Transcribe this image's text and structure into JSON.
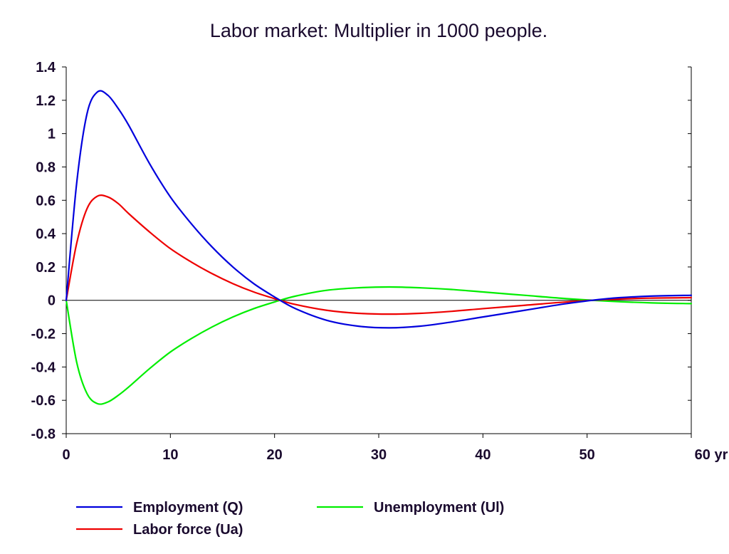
{
  "chart_data": {
    "type": "line",
    "title": "Labor market: Multiplier in 1000 people.",
    "xlabel": "",
    "ylabel": "",
    "x_unit": "yr",
    "xlim": [
      0,
      60
    ],
    "ylim": [
      -0.8,
      1.4
    ],
    "x_ticks": [
      0,
      10,
      20,
      30,
      40,
      50,
      60
    ],
    "x_tick_labels": [
      "0",
      "10",
      "20",
      "30",
      "40",
      "50",
      "60 yr"
    ],
    "y_ticks": [
      -0.8,
      -0.6,
      -0.4,
      -0.2,
      0,
      0.2,
      0.4,
      0.6,
      0.8,
      1,
      1.2,
      1.4
    ],
    "y_tick_labels": [
      "-0.8",
      "-0.6",
      "-0.4",
      "-0.2",
      "0",
      "0.2",
      "0.4",
      "0.6",
      "0.8",
      "1",
      "1.2",
      "1.4"
    ],
    "grid": false,
    "zero_line": true,
    "legend_position": "bottom",
    "series": [
      {
        "name": "Employment (Q)",
        "color": "#0000dd",
        "x": [
          0,
          1,
          2,
          3,
          4,
          5,
          6,
          8,
          10,
          12,
          14,
          16,
          18,
          20,
          22,
          25,
          28,
          31,
          34,
          37,
          40,
          44,
          48,
          52,
          56,
          60
        ],
        "y": [
          0,
          0.7,
          1.12,
          1.25,
          1.23,
          1.15,
          1.05,
          0.82,
          0.62,
          0.46,
          0.32,
          0.2,
          0.1,
          0.02,
          -0.05,
          -0.12,
          -0.155,
          -0.165,
          -0.155,
          -0.13,
          -0.1,
          -0.06,
          -0.02,
          0.01,
          0.025,
          0.03
        ]
      },
      {
        "name": "Labor force (Ua)",
        "color": "#ee0000",
        "x": [
          0,
          1,
          2,
          3,
          4,
          5,
          6,
          8,
          10,
          12,
          14,
          16,
          18,
          20,
          22,
          25,
          28,
          31,
          34,
          37,
          40,
          44,
          48,
          52,
          56,
          60
        ],
        "y": [
          0,
          0.34,
          0.55,
          0.625,
          0.62,
          0.58,
          0.52,
          0.41,
          0.31,
          0.23,
          0.16,
          0.1,
          0.05,
          0.01,
          -0.025,
          -0.06,
          -0.078,
          -0.083,
          -0.078,
          -0.066,
          -0.05,
          -0.03,
          -0.01,
          0.005,
          0.013,
          0.016
        ]
      },
      {
        "name": "Unemployment (Ul)",
        "color": "#00ee00",
        "x": [
          0,
          1,
          2,
          3,
          4,
          5,
          6,
          8,
          10,
          12,
          14,
          16,
          18,
          20,
          22,
          25,
          28,
          31,
          34,
          37,
          40,
          44,
          48,
          52,
          56,
          60
        ],
        "y": [
          0,
          -0.37,
          -0.56,
          -0.62,
          -0.61,
          -0.57,
          -0.52,
          -0.41,
          -0.31,
          -0.23,
          -0.16,
          -0.1,
          -0.05,
          -0.01,
          0.025,
          0.06,
          0.075,
          0.08,
          0.075,
          0.065,
          0.05,
          0.03,
          0.01,
          -0.005,
          -0.015,
          -0.02
        ]
      }
    ]
  }
}
